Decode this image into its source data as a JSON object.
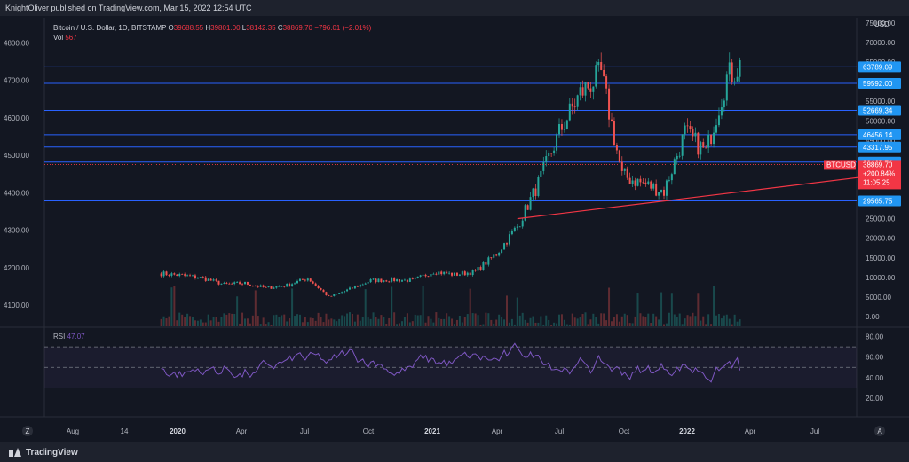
{
  "header": {
    "publisher": "KnightOliver published on TradingView.com, Mar 15, 2022 12:54 UTC"
  },
  "legend": {
    "symbol": "Bitcoin / U.S. Dollar, 1D, BITSTAMP",
    "o_label": "O",
    "o_value": "39688.55",
    "h_label": "H",
    "h_value": "39801.00",
    "l_label": "L",
    "l_value": "38142.35",
    "c_label": "C",
    "c_value": "38869.70",
    "change": "−796.01 (−2.01%)",
    "vol_label": "Vol",
    "vol_value": "567"
  },
  "rsi_legend": {
    "label": "RSI",
    "value": "47.07"
  },
  "currency": "USD",
  "footer": {
    "brand": "TradingView",
    "z_button": "Z",
    "a_button": "A"
  },
  "colors": {
    "up": "#26a69a",
    "down": "#ef5350",
    "hline": "#2962ff",
    "badge": "#2196f3",
    "trend": "#f23645",
    "rsi": "#7e57c2",
    "price_label": "#f23645"
  },
  "chart_data": [
    {
      "type": "candlestick",
      "title": "Bitcoin / U.S. Dollar, 1D, BITSTAMP",
      "x_ticks": [
        "Aug",
        "14",
        "2020",
        "Apr",
        "Jul",
        "Oct",
        "2021",
        "Apr",
        "Jul",
        "Oct",
        "2022",
        "Apr",
        "Jul"
      ],
      "left_axis_ticks": [
        4100,
        4200,
        4300,
        4400,
        4500,
        4600,
        4700,
        4800
      ],
      "left_axis_labels": [
        "4100.00",
        "4200.00",
        "4300.00",
        "4400.00",
        "4500.00",
        "4600.00",
        "4700.00",
        "4800.00"
      ],
      "right_axis_ticks": [
        0,
        5000,
        10000,
        15000,
        20000,
        25000,
        30000,
        35000,
        40000,
        45000,
        50000,
        55000,
        60000,
        65000,
        70000,
        75000
      ],
      "right_axis_labels": [
        "0.00",
        "5000.00",
        "10000.00",
        "15000.00",
        "20000.00",
        "25000.00",
        "30000.00",
        "35000.00",
        "40000.00",
        "45000.00",
        "50000.00",
        "55000.00",
        "60000.00",
        "65000.00",
        "70000.00",
        "75000.00"
      ],
      "horizontal_levels": [
        63789.09,
        59592.0,
        52669.34,
        46456.14,
        43317.95,
        39465.74,
        29565.75
      ],
      "horizontal_level_labels": [
        "63789.09",
        "59592.00",
        "52669.34",
        "46456.14",
        "43317.95",
        "39465.74",
        "29565.75"
      ],
      "last_price": {
        "symbol": "BTCUSD",
        "value": "38869.70",
        "change": "+200.84%",
        "countdown": "11:05:25"
      },
      "closes_approx": [
        {
          "date": "2019-07",
          "value": 11000
        },
        {
          "date": "2019-08",
          "value": 10500
        },
        {
          "date": "2019-09",
          "value": 9800
        },
        {
          "date": "2019-10",
          "value": 8200
        },
        {
          "date": "2019-11",
          "value": 8500
        },
        {
          "date": "2019-12",
          "value": 7300
        },
        {
          "date": "2020-01",
          "value": 8000
        },
        {
          "date": "2020-02",
          "value": 9800
        },
        {
          "date": "2020-03",
          "value": 5000
        },
        {
          "date": "2020-04",
          "value": 7000
        },
        {
          "date": "2020-05",
          "value": 9200
        },
        {
          "date": "2020-06",
          "value": 9400
        },
        {
          "date": "2020-07",
          "value": 9200
        },
        {
          "date": "2020-08",
          "value": 11500
        },
        {
          "date": "2020-09",
          "value": 10700
        },
        {
          "date": "2020-10",
          "value": 11500
        },
        {
          "date": "2020-11",
          "value": 16000
        },
        {
          "date": "2020-12",
          "value": 23000
        },
        {
          "date": "2021-01",
          "value": 34000
        },
        {
          "date": "2021-02",
          "value": 47000
        },
        {
          "date": "2021-03",
          "value": 57000
        },
        {
          "date": "2021-04",
          "value": 62000
        },
        {
          "date": "2021-05",
          "value": 36000
        },
        {
          "date": "2021-06",
          "value": 34000
        },
        {
          "date": "2021-07",
          "value": 32000
        },
        {
          "date": "2021-08",
          "value": 47000
        },
        {
          "date": "2021-09",
          "value": 42000
        },
        {
          "date": "2021-10",
          "value": 61000
        },
        {
          "date": "2021-11",
          "value": 66000
        },
        {
          "date": "2021-12",
          "value": 47000
        },
        {
          "date": "2022-01",
          "value": 38000
        },
        {
          "date": "2022-02",
          "value": 43000
        },
        {
          "date": "2022-03",
          "value": 38900
        }
      ],
      "trendline": [
        {
          "date": "2020-12",
          "value": 25000
        },
        {
          "date": "2022-05",
          "value": 36000
        }
      ],
      "ylim": [
        -5000,
        77000
      ]
    },
    {
      "type": "line",
      "title": "RSI",
      "y_ticks": [
        20,
        40,
        60,
        80
      ],
      "y_tick_labels": [
        "20.00",
        "40.00",
        "60.00",
        "80.00"
      ],
      "bands": [
        30,
        50,
        70
      ],
      "last_value": 47.07,
      "ylim": [
        10,
        90
      ]
    }
  ]
}
